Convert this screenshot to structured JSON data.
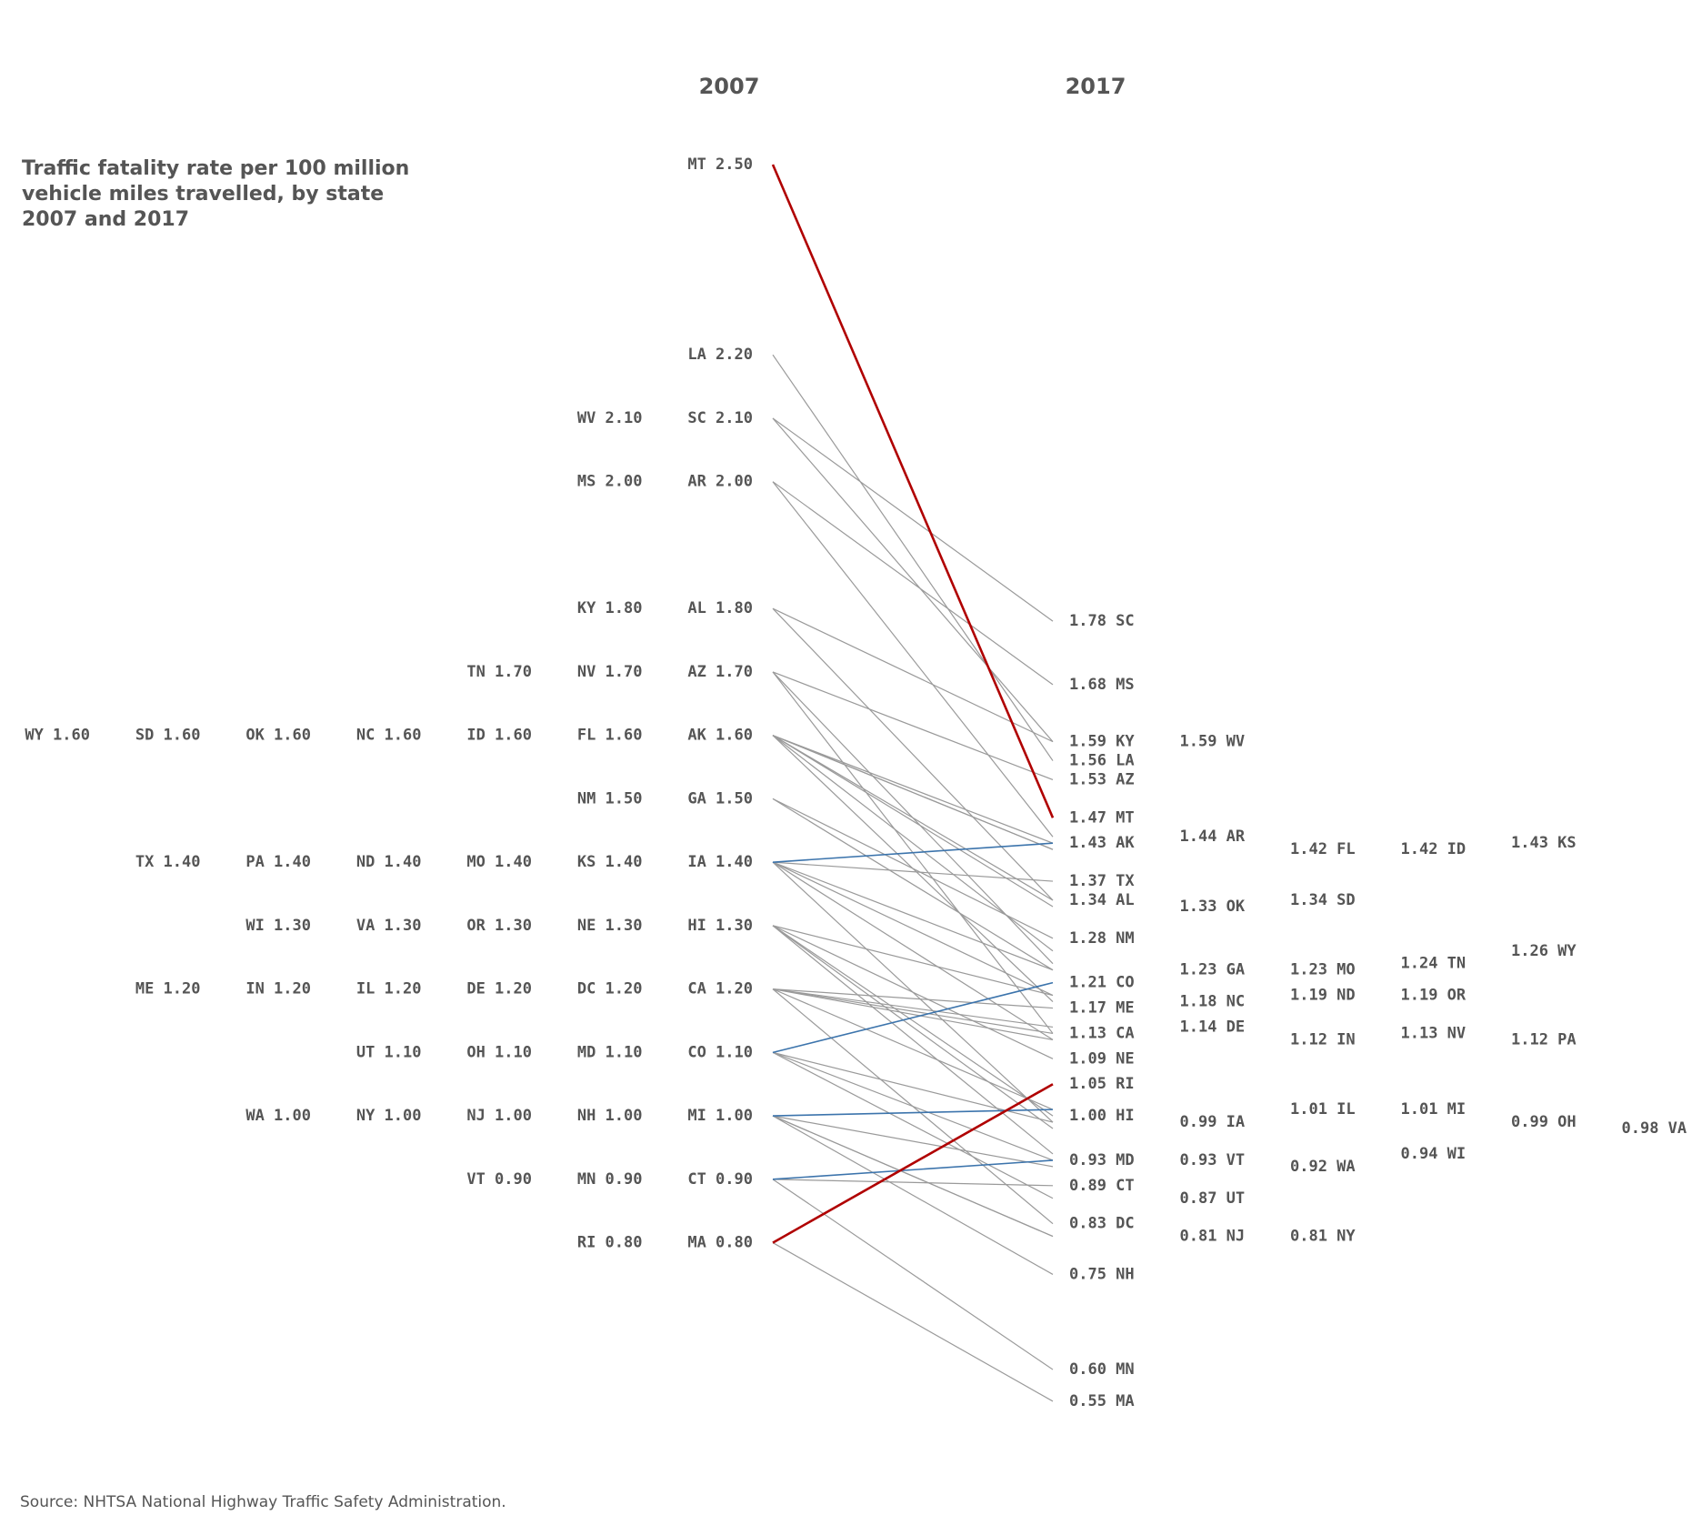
{
  "chart_data": {
    "type": "slope",
    "title": [
      "Traffic fatality rate per 100 million",
      "vehicle miles travelled, by state",
      "2007 and 2017"
    ],
    "x_labels": [
      "2007",
      "2017"
    ],
    "source": "Source: NHTSA National Highway Traffic Safety Administration.",
    "colors": {
      "default": "#9a9a9a",
      "text": "#555555",
      "increase": "#b00000",
      "decrease_highlight": "#4a8cc8",
      "line_blue": "#3c74ac"
    },
    "states": [
      {
        "state": "MT",
        "y2007": 2.5,
        "y2017": 1.47,
        "highlight": "red"
      },
      {
        "state": "LA",
        "y2007": 2.2,
        "y2017": 1.56
      },
      {
        "state": "SC",
        "y2007": 2.1,
        "y2017": 1.78
      },
      {
        "state": "WV",
        "y2007": 2.1,
        "y2017": 1.59
      },
      {
        "state": "AR",
        "y2007": 2.0,
        "y2017": 1.44
      },
      {
        "state": "MS",
        "y2007": 2.0,
        "y2017": 1.68
      },
      {
        "state": "AL",
        "y2007": 1.8,
        "y2017": 1.34
      },
      {
        "state": "KY",
        "y2007": 1.8,
        "y2017": 1.59
      },
      {
        "state": "AZ",
        "y2007": 1.7,
        "y2017": 1.53
      },
      {
        "state": "NV",
        "y2007": 1.7,
        "y2017": 1.13
      },
      {
        "state": "TN",
        "y2007": 1.7,
        "y2017": 1.24
      },
      {
        "state": "AK",
        "y2007": 1.6,
        "y2017": 1.43
      },
      {
        "state": "FL",
        "y2007": 1.6,
        "y2017": 1.42
      },
      {
        "state": "ID",
        "y2007": 1.6,
        "y2017": 1.42
      },
      {
        "state": "NC",
        "y2007": 1.6,
        "y2017": 1.18
      },
      {
        "state": "OK",
        "y2007": 1.6,
        "y2017": 1.33
      },
      {
        "state": "SD",
        "y2007": 1.6,
        "y2017": 1.34
      },
      {
        "state": "WY",
        "y2007": 1.6,
        "y2017": 1.26
      },
      {
        "state": "GA",
        "y2007": 1.5,
        "y2017": 1.23
      },
      {
        "state": "NM",
        "y2007": 1.5,
        "y2017": 1.28
      },
      {
        "state": "IA",
        "y2007": 1.4,
        "y2017": 0.99
      },
      {
        "state": "KS",
        "y2007": 1.4,
        "y2017": 1.43,
        "highlight": "blue"
      },
      {
        "state": "MO",
        "y2007": 1.4,
        "y2017": 1.23
      },
      {
        "state": "ND",
        "y2007": 1.4,
        "y2017": 1.19
      },
      {
        "state": "PA",
        "y2007": 1.4,
        "y2017": 1.12
      },
      {
        "state": "TX",
        "y2007": 1.4,
        "y2017": 1.37
      },
      {
        "state": "HI",
        "y2007": 1.3,
        "y2017": 1.0
      },
      {
        "state": "NE",
        "y2007": 1.3,
        "y2017": 1.09
      },
      {
        "state": "OR",
        "y2007": 1.3,
        "y2017": 1.19
      },
      {
        "state": "VA",
        "y2007": 1.3,
        "y2017": 0.98
      },
      {
        "state": "WI",
        "y2007": 1.3,
        "y2017": 0.94
      },
      {
        "state": "CA",
        "y2007": 1.2,
        "y2017": 1.13
      },
      {
        "state": "DC",
        "y2007": 1.2,
        "y2017": 0.83
      },
      {
        "state": "DE",
        "y2007": 1.2,
        "y2017": 1.14
      },
      {
        "state": "IL",
        "y2007": 1.2,
        "y2017": 1.01
      },
      {
        "state": "IN",
        "y2007": 1.2,
        "y2017": 1.12
      },
      {
        "state": "ME",
        "y2007": 1.2,
        "y2017": 1.17
      },
      {
        "state": "CO",
        "y2007": 1.1,
        "y2017": 1.21,
        "highlight": "blue"
      },
      {
        "state": "MD",
        "y2007": 1.1,
        "y2017": 0.93
      },
      {
        "state": "OH",
        "y2007": 1.1,
        "y2017": 0.99
      },
      {
        "state": "UT",
        "y2007": 1.1,
        "y2017": 0.87
      },
      {
        "state": "MI",
        "y2007": 1.0,
        "y2017": 1.01,
        "highlight": "blue"
      },
      {
        "state": "NH",
        "y2007": 1.0,
        "y2017": 0.75
      },
      {
        "state": "NJ",
        "y2007": 1.0,
        "y2017": 0.81
      },
      {
        "state": "NY",
        "y2007": 1.0,
        "y2017": 0.81
      },
      {
        "state": "WA",
        "y2007": 1.0,
        "y2017": 0.92
      },
      {
        "state": "CT",
        "y2007": 0.9,
        "y2017": 0.89
      },
      {
        "state": "MN",
        "y2007": 0.9,
        "y2017": 0.6
      },
      {
        "state": "VT",
        "y2007": 0.9,
        "y2017": 0.93,
        "highlight": "blue"
      },
      {
        "state": "MA",
        "y2007": 0.8,
        "y2017": 0.55
      },
      {
        "state": "RI",
        "y2007": 0.8,
        "y2017": 1.05,
        "highlight": "red"
      }
    ]
  }
}
